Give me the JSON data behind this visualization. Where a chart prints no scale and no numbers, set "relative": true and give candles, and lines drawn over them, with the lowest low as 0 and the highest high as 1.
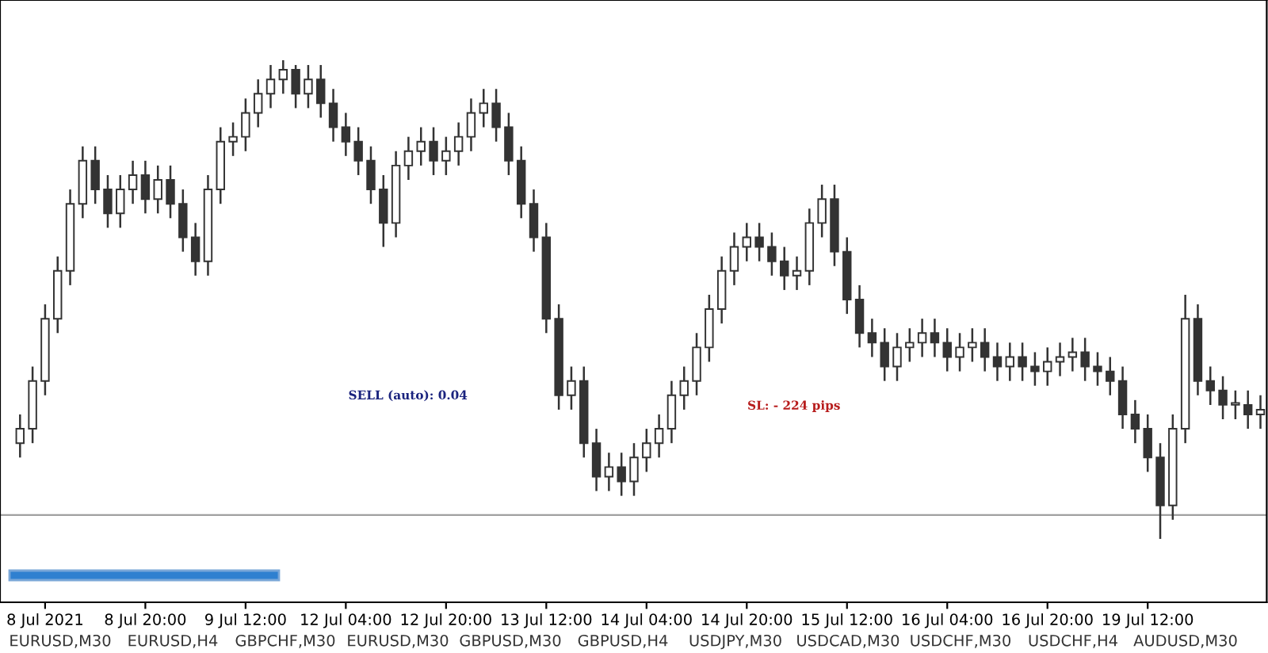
{
  "chart_data": {
    "type": "candlestick",
    "relative": true,
    "tick_labels": "x",
    "grid": false,
    "categories": [
      null,
      null,
      "8 Jul 2021",
      null,
      null,
      null,
      null,
      null,
      null,
      null,
      "8 Jul 20:00",
      null,
      null,
      null,
      null,
      null,
      null,
      null,
      "9 Jul 12:00",
      null,
      null,
      null,
      null,
      null,
      null,
      null,
      "12 Jul 04:00",
      null,
      null,
      null,
      null,
      null,
      null,
      null,
      "12 Jul 20:00",
      null,
      null,
      null,
      null,
      null,
      null,
      null,
      "13 Jul 12:00",
      null,
      null,
      null,
      null,
      null,
      null,
      null,
      "14 Jul 04:00",
      null,
      null,
      null,
      null,
      null,
      null,
      null,
      "14 Jul 20:00",
      null,
      null,
      null,
      null,
      null,
      null,
      null,
      "15 Jul 12:00",
      null,
      null,
      null,
      null,
      null,
      null,
      null,
      "16 Jul 04:00",
      null,
      null,
      null,
      null,
      null,
      null,
      null,
      "16 Jul 20:00",
      null,
      null,
      null,
      null,
      null,
      null,
      null,
      "19 Jul 12:00",
      null,
      null,
      null,
      null,
      null,
      null,
      null,
      null,
      null
    ],
    "ohlc": [
      [
        0.2,
        0.26,
        0.17,
        0.23
      ],
      [
        0.23,
        0.36,
        0.2,
        0.33
      ],
      [
        0.33,
        0.49,
        0.3,
        0.46
      ],
      [
        0.46,
        0.59,
        0.43,
        0.56
      ],
      [
        0.56,
        0.73,
        0.53,
        0.7
      ],
      [
        0.7,
        0.82,
        0.67,
        0.79
      ],
      [
        0.79,
        0.82,
        0.7,
        0.73
      ],
      [
        0.73,
        0.76,
        0.65,
        0.68
      ],
      [
        0.68,
        0.76,
        0.65,
        0.73
      ],
      [
        0.73,
        0.79,
        0.7,
        0.76
      ],
      [
        0.76,
        0.79,
        0.68,
        0.71
      ],
      [
        0.71,
        0.78,
        0.68,
        0.75
      ],
      [
        0.75,
        0.78,
        0.67,
        0.7
      ],
      [
        0.7,
        0.73,
        0.6,
        0.63
      ],
      [
        0.63,
        0.66,
        0.55,
        0.58
      ],
      [
        0.58,
        0.76,
        0.55,
        0.73
      ],
      [
        0.73,
        0.86,
        0.7,
        0.83
      ],
      [
        0.83,
        0.87,
        0.8,
        0.84
      ],
      [
        0.84,
        0.92,
        0.81,
        0.89
      ],
      [
        0.89,
        0.96,
        0.86,
        0.93
      ],
      [
        0.93,
        0.99,
        0.9,
        0.96
      ],
      [
        0.96,
        1.0,
        0.93,
        0.98
      ],
      [
        0.98,
        0.99,
        0.9,
        0.93
      ],
      [
        0.93,
        0.99,
        0.9,
        0.96
      ],
      [
        0.96,
        0.99,
        0.88,
        0.91
      ],
      [
        0.91,
        0.94,
        0.83,
        0.86
      ],
      [
        0.86,
        0.89,
        0.8,
        0.83
      ],
      [
        0.83,
        0.86,
        0.76,
        0.79
      ],
      [
        0.79,
        0.82,
        0.7,
        0.73
      ],
      [
        0.73,
        0.76,
        0.61,
        0.66
      ],
      [
        0.66,
        0.81,
        0.63,
        0.78
      ],
      [
        0.78,
        0.84,
        0.75,
        0.81
      ],
      [
        0.81,
        0.86,
        0.78,
        0.83
      ],
      [
        0.83,
        0.86,
        0.76,
        0.79
      ],
      [
        0.79,
        0.84,
        0.76,
        0.81
      ],
      [
        0.81,
        0.87,
        0.78,
        0.84
      ],
      [
        0.84,
        0.92,
        0.81,
        0.89
      ],
      [
        0.89,
        0.94,
        0.86,
        0.91
      ],
      [
        0.91,
        0.94,
        0.83,
        0.86
      ],
      [
        0.86,
        0.89,
        0.76,
        0.79
      ],
      [
        0.79,
        0.82,
        0.67,
        0.7
      ],
      [
        0.7,
        0.73,
        0.6,
        0.63
      ],
      [
        0.63,
        0.66,
        0.43,
        0.46
      ],
      [
        0.46,
        0.49,
        0.27,
        0.3
      ],
      [
        0.3,
        0.36,
        0.27,
        0.33
      ],
      [
        0.33,
        0.36,
        0.17,
        0.2
      ],
      [
        0.2,
        0.23,
        0.1,
        0.13
      ],
      [
        0.13,
        0.18,
        0.1,
        0.15
      ],
      [
        0.15,
        0.18,
        0.09,
        0.12
      ],
      [
        0.12,
        0.2,
        0.09,
        0.17
      ],
      [
        0.17,
        0.23,
        0.14,
        0.2
      ],
      [
        0.2,
        0.26,
        0.17,
        0.23
      ],
      [
        0.23,
        0.33,
        0.2,
        0.3
      ],
      [
        0.3,
        0.36,
        0.27,
        0.33
      ],
      [
        0.33,
        0.43,
        0.3,
        0.4
      ],
      [
        0.4,
        0.51,
        0.37,
        0.48
      ],
      [
        0.48,
        0.59,
        0.45,
        0.56
      ],
      [
        0.56,
        0.64,
        0.53,
        0.61
      ],
      [
        0.61,
        0.66,
        0.58,
        0.63
      ],
      [
        0.63,
        0.66,
        0.58,
        0.61
      ],
      [
        0.61,
        0.64,
        0.55,
        0.58
      ],
      [
        0.58,
        0.61,
        0.52,
        0.55
      ],
      [
        0.55,
        0.59,
        0.52,
        0.56
      ],
      [
        0.56,
        0.69,
        0.53,
        0.66
      ],
      [
        0.66,
        0.74,
        0.63,
        0.71
      ],
      [
        0.71,
        0.74,
        0.57,
        0.6
      ],
      [
        0.6,
        0.63,
        0.47,
        0.5
      ],
      [
        0.5,
        0.53,
        0.4,
        0.43
      ],
      [
        0.43,
        0.46,
        0.38,
        0.41
      ],
      [
        0.41,
        0.44,
        0.33,
        0.36
      ],
      [
        0.36,
        0.43,
        0.33,
        0.4
      ],
      [
        0.4,
        0.44,
        0.37,
        0.41
      ],
      [
        0.41,
        0.46,
        0.38,
        0.43
      ],
      [
        0.43,
        0.46,
        0.38,
        0.41
      ],
      [
        0.41,
        0.44,
        0.35,
        0.38
      ],
      [
        0.38,
        0.43,
        0.35,
        0.4
      ],
      [
        0.4,
        0.44,
        0.37,
        0.41
      ],
      [
        0.41,
        0.44,
        0.35,
        0.38
      ],
      [
        0.38,
        0.41,
        0.33,
        0.36
      ],
      [
        0.36,
        0.41,
        0.33,
        0.38
      ],
      [
        0.38,
        0.41,
        0.33,
        0.36
      ],
      [
        0.36,
        0.39,
        0.32,
        0.35
      ],
      [
        0.35,
        0.4,
        0.32,
        0.37
      ],
      [
        0.37,
        0.41,
        0.34,
        0.38
      ],
      [
        0.38,
        0.42,
        0.35,
        0.39
      ],
      [
        0.39,
        0.42,
        0.33,
        0.36
      ],
      [
        0.36,
        0.39,
        0.32,
        0.35
      ],
      [
        0.35,
        0.38,
        0.3,
        0.33
      ],
      [
        0.33,
        0.36,
        0.23,
        0.26
      ],
      [
        0.26,
        0.29,
        0.2,
        0.23
      ],
      [
        0.23,
        0.26,
        0.14,
        0.17
      ],
      [
        0.17,
        0.2,
        0.0,
        0.07
      ],
      [
        0.07,
        0.26,
        0.04,
        0.23
      ],
      [
        0.23,
        0.51,
        0.2,
        0.46
      ],
      [
        0.46,
        0.49,
        0.3,
        0.33
      ],
      [
        0.33,
        0.36,
        0.28,
        0.31
      ],
      [
        0.31,
        0.34,
        0.25,
        0.28
      ],
      [
        0.28,
        0.31,
        0.25,
        0.28
      ],
      [
        0.28,
        0.31,
        0.23,
        0.26
      ],
      [
        0.26,
        0.3,
        0.23,
        0.27
      ]
    ],
    "ref_lines": [
      {
        "axis": "y",
        "value": 0.05,
        "label": null,
        "color": "#a0a0a0"
      }
    ],
    "annotations": [
      "SELL (auto): 0.04",
      "SL: - 224 pips",
      "EURUSD,M30",
      "EURUSD,H4",
      "GBPCHF,M30",
      "EURUSD,M30",
      "GBPUSD,M30",
      "GBPUSD,H4",
      "USDJPY,M30",
      "USDCAD,M30",
      "USDCHF,M30",
      "USDCHF,H4",
      "AUDUSD,M30"
    ]
  }
}
